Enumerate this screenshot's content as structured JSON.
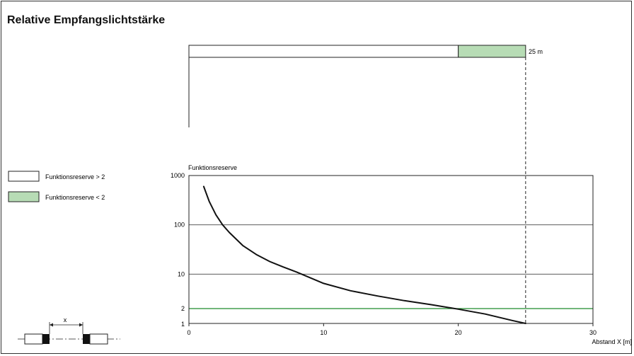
{
  "title": "Relative Empfangslichtstärke",
  "range_bar": {
    "reserve_gt2_until": 20,
    "reserve_lt2_until": 25,
    "label": "25 m"
  },
  "legend": {
    "items": [
      {
        "label": "Funktionsreserve > 2",
        "color": "#ffffff"
      },
      {
        "label": "Funktionsreserve < 2",
        "color": "#b7dcb5"
      }
    ]
  },
  "diagram": {
    "x_label": "x"
  },
  "colors": {
    "reserve_lt2": "#b7dcb5",
    "threshold_line": "#1f8a2a",
    "curve": "#111111"
  },
  "chart_data": {
    "type": "line",
    "title": "",
    "ylabel": "Funktionsreserve",
    "xlabel": "Abstand X [m]",
    "xlim": [
      0,
      30
    ],
    "ylim": [
      1,
      1000
    ],
    "y_scale": "log",
    "x_ticks": [
      0,
      10,
      20,
      30
    ],
    "y_ticks": [
      1,
      2,
      10,
      100,
      1000
    ],
    "grid": "horizontal",
    "reference_lines": [
      {
        "orientation": "horizontal",
        "value": 2,
        "color": "#1f8a2a"
      },
      {
        "orientation": "vertical",
        "value": 25,
        "style": "dashed"
      }
    ],
    "series": [
      {
        "x": [
          1.1,
          1.5,
          2,
          2.5,
          3,
          4,
          5,
          6,
          7,
          8,
          10,
          12,
          14,
          16,
          18,
          20,
          22,
          24,
          25
        ],
        "values": [
          600,
          300,
          160,
          100,
          70,
          38,
          25,
          18,
          14,
          11,
          6.5,
          4.6,
          3.6,
          2.9,
          2.4,
          1.95,
          1.55,
          1.15,
          1
        ]
      }
    ]
  }
}
